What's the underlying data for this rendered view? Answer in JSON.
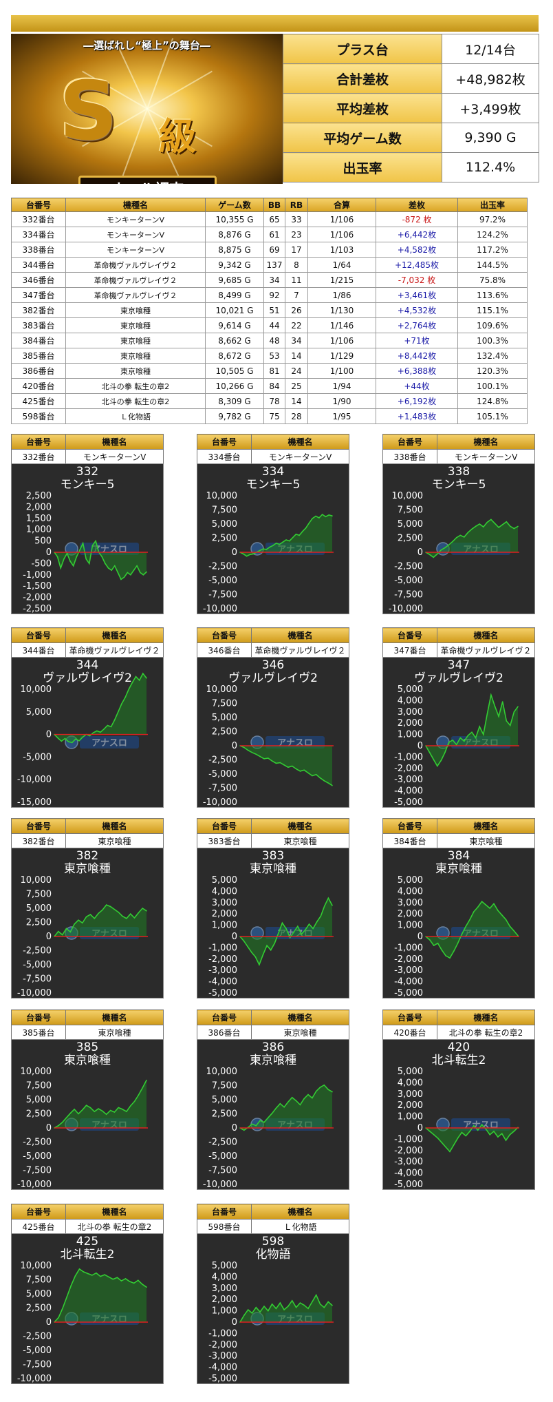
{
  "banner": {
    "subtitle": "―選ばれし“極上”の舞台―",
    "emblem_letter": "S",
    "emblem_grade": "級",
    "plate": "ホール調査"
  },
  "summary": [
    {
      "label": "プラス台",
      "value": "12/14台"
    },
    {
      "label": "合計差枚",
      "value": "+48,982枚"
    },
    {
      "label": "平均差枚",
      "value": "+3,499枚"
    },
    {
      "label": "平均ゲーム数",
      "value": "9,390 G"
    },
    {
      "label": "出玉率",
      "value": "112.4%"
    }
  ],
  "table": {
    "headers": [
      "台番号",
      "機種名",
      "ゲーム数",
      "BB",
      "RB",
      "合算",
      "差枚",
      "出玉率"
    ],
    "rows": [
      [
        "332番台",
        "モンキーターンV",
        "10,355 G",
        "65",
        "33",
        "1/106",
        "-872 枚",
        "97.2%"
      ],
      [
        "334番台",
        "モンキーターンV",
        "8,876 G",
        "61",
        "23",
        "1/106",
        "+6,442枚",
        "124.2%"
      ],
      [
        "338番台",
        "モンキーターンV",
        "8,875 G",
        "69",
        "17",
        "1/103",
        "+4,582枚",
        "117.2%"
      ],
      [
        "344番台",
        "革命機ヴァルヴレイヴ２",
        "9,342 G",
        "137",
        "8",
        "1/64",
        "+12,485枚",
        "144.5%"
      ],
      [
        "346番台",
        "革命機ヴァルヴレイヴ２",
        "9,685 G",
        "34",
        "11",
        "1/215",
        "-7,032 枚",
        "75.8%"
      ],
      [
        "347番台",
        "革命機ヴァルヴレイヴ２",
        "8,499 G",
        "92",
        "7",
        "1/86",
        "+3,461枚",
        "113.6%"
      ],
      [
        "382番台",
        "東京喰種",
        "10,021 G",
        "51",
        "26",
        "1/130",
        "+4,532枚",
        "115.1%"
      ],
      [
        "383番台",
        "東京喰種",
        "9,614 G",
        "44",
        "22",
        "1/146",
        "+2,764枚",
        "109.6%"
      ],
      [
        "384番台",
        "東京喰種",
        "8,662 G",
        "48",
        "34",
        "1/106",
        "+71枚",
        "100.3%"
      ],
      [
        "385番台",
        "東京喰種",
        "8,672 G",
        "53",
        "14",
        "1/129",
        "+8,442枚",
        "132.4%"
      ],
      [
        "386番台",
        "東京喰種",
        "10,505 G",
        "81",
        "24",
        "1/100",
        "+6,388枚",
        "120.3%"
      ],
      [
        "420番台",
        "北斗の拳 転生の章2",
        "10,266 G",
        "84",
        "25",
        "1/94",
        "+44枚",
        "100.1%"
      ],
      [
        "425番台",
        "北斗の拳 転生の章2",
        "8,309 G",
        "78",
        "14",
        "1/90",
        "+6,192枚",
        "124.8%"
      ],
      [
        "598番台",
        "Ｌ化物語",
        "9,782 G",
        "75",
        "28",
        "1/95",
        "+1,483枚",
        "105.1%"
      ]
    ]
  },
  "panel_header": {
    "col1": "台番号",
    "col2": "機種名"
  },
  "watermark": "アナスロ",
  "colors": {
    "gold": "#d9a423",
    "positive": "#1c1ca8",
    "negative": "#c81414",
    "chart_bg": "#2b2b2b",
    "line": "#33cc33",
    "zero_line": "#e02020"
  },
  "chart_data": [
    {
      "type": "area",
      "unit": "332番台",
      "model": "モンキーターンV",
      "title1": "332",
      "title2": "モンキー5",
      "ylim": [
        -2500,
        2500
      ],
      "yticks": [
        "2,500",
        "2,000",
        "1,500",
        "1,000",
        "500",
        "0",
        "-500",
        "-1,000",
        "-1,500",
        "-2,000",
        "-2,500"
      ],
      "values": [
        0,
        -200,
        -700,
        -300,
        -50,
        -400,
        -600,
        -200,
        100,
        400,
        -300,
        -500,
        300,
        500,
        0,
        -200,
        -500,
        -700,
        -800,
        -600,
        -900,
        -1200,
        -1100,
        -900,
        -1000,
        -800,
        -600,
        -900,
        -1000,
        -872
      ]
    },
    {
      "type": "area",
      "unit": "334番台",
      "model": "モンキーターンV",
      "title1": "334",
      "title2": "モンキー5",
      "ylim": [
        -10000,
        10000
      ],
      "yticks": [
        "10,000",
        "7,500",
        "5,000",
        "2,500",
        "0",
        "-2,500",
        "-5,000",
        "-7,500",
        "-10,000"
      ],
      "values": [
        0,
        -300,
        -700,
        -400,
        -300,
        0,
        300,
        600,
        500,
        900,
        1200,
        1600,
        1400,
        1800,
        2200,
        2000,
        2600,
        3200,
        3000,
        3700,
        4300,
        5200,
        6000,
        6400,
        6100,
        6700,
        6300,
        6600,
        6442
      ]
    },
    {
      "type": "area",
      "unit": "338番台",
      "model": "モンキーターンV",
      "title1": "338",
      "title2": "モンキー5",
      "ylim": [
        -10000,
        10000
      ],
      "yticks": [
        "10,000",
        "7,500",
        "5,000",
        "2,500",
        "0",
        "-2,500",
        "-5,000",
        "-7,500",
        "-10,000"
      ],
      "values": [
        0,
        -400,
        -900,
        -300,
        400,
        800,
        1300,
        1900,
        2600,
        3000,
        2700,
        3500,
        4100,
        4600,
        5000,
        4500,
        5300,
        5800,
        5100,
        4400,
        4900,
        5400,
        4600,
        4200,
        4582
      ]
    },
    {
      "type": "area",
      "unit": "344番台",
      "model": "革命機ヴァルヴレイヴ２",
      "title1": "344",
      "title2": "ヴァルヴレイヴ2",
      "ylim": [
        -15000,
        15000
      ],
      "yticks": [
        "10,000",
        "5,000",
        "0",
        "-5,000",
        "-10,000",
        "-15,000"
      ],
      "values": [
        0,
        -800,
        -1500,
        -900,
        -1600,
        -1800,
        -1000,
        -1400,
        -600,
        0,
        -300,
        400,
        800,
        500,
        1200,
        2000,
        1700,
        3200,
        5000,
        6800,
        8200,
        10000,
        11500,
        12800,
        12000,
        13500,
        12485
      ]
    },
    {
      "type": "area",
      "unit": "346番台",
      "model": "革命機ヴァルヴレイヴ２",
      "title1": "346",
      "title2": "ヴァルヴレイヴ2",
      "ylim": [
        -10000,
        10000
      ],
      "yticks": [
        "10,000",
        "7,500",
        "5,000",
        "2,500",
        "0",
        "-2,500",
        "-5,000",
        "-7,500",
        "-10,000"
      ],
      "values": [
        0,
        -300,
        -800,
        -1200,
        -1500,
        -1900,
        -2300,
        -2200,
        -2700,
        -3100,
        -3000,
        -3400,
        -3800,
        -3600,
        -4100,
        -4500,
        -4300,
        -4800,
        -5300,
        -5100,
        -5700,
        -6200,
        -6600,
        -7032
      ]
    },
    {
      "type": "area",
      "unit": "347番台",
      "model": "革命機ヴァルヴレイヴ２",
      "title1": "347",
      "title2": "ヴァルヴレイヴ2",
      "ylim": [
        -5000,
        5000
      ],
      "yticks": [
        "5,000",
        "4,000",
        "3,000",
        "2,000",
        "1,000",
        "0",
        "-1,000",
        "-2,000",
        "-3,000",
        "-4,000",
        "-5,000"
      ],
      "values": [
        0,
        -600,
        -1200,
        -1800,
        -1300,
        -600,
        300,
        500,
        100,
        700,
        400,
        900,
        1200,
        700,
        1700,
        1000,
        2800,
        4500,
        3500,
        2600,
        3900,
        2200,
        1800,
        3000,
        3461
      ]
    },
    {
      "type": "area",
      "unit": "382番台",
      "model": "東京喰種",
      "title1": "382",
      "title2": "東京喰種",
      "ylim": [
        -10000,
        10000
      ],
      "yticks": [
        "10,000",
        "7,500",
        "5,000",
        "2,500",
        "0",
        "-2,500",
        "-5,000",
        "-7,500",
        "-10,000"
      ],
      "values": [
        0,
        900,
        300,
        1400,
        800,
        2200,
        2900,
        2400,
        3500,
        3900,
        3200,
        4100,
        4700,
        5600,
        5300,
        4800,
        4300,
        3600,
        3200,
        4000,
        3300,
        4200,
        5000,
        4532
      ]
    },
    {
      "type": "area",
      "unit": "383番台",
      "model": "東京喰種",
      "title1": "383",
      "title2": "東京喰種",
      "ylim": [
        -5000,
        5000
      ],
      "yticks": [
        "5,000",
        "4,000",
        "3,000",
        "2,000",
        "1,000",
        "0",
        "-1,000",
        "-2,000",
        "-3,000",
        "-4,000",
        "-5,000"
      ],
      "values": [
        0,
        -400,
        -900,
        -1400,
        -1800,
        -2500,
        -1600,
        -800,
        -1200,
        -600,
        300,
        1200,
        700,
        -100,
        400,
        900,
        200,
        600,
        1100,
        700,
        1300,
        1800,
        2700,
        3400,
        2764
      ]
    },
    {
      "type": "area",
      "unit": "384番台",
      "model": "東京喰種",
      "title1": "384",
      "title2": "東京喰種",
      "ylim": [
        -5000,
        5000
      ],
      "yticks": [
        "5,000",
        "4,000",
        "3,000",
        "2,000",
        "1,000",
        "0",
        "-1,000",
        "-2,000",
        "-3,000",
        "-4,000",
        "-5,000"
      ],
      "values": [
        0,
        -300,
        -800,
        -600,
        -1200,
        -1700,
        -1900,
        -1300,
        -600,
        200,
        900,
        1500,
        2200,
        2600,
        3100,
        2800,
        2500,
        2900,
        2300,
        1900,
        1500,
        900,
        500,
        71
      ]
    },
    {
      "type": "area",
      "unit": "385番台",
      "model": "東京喰種",
      "title1": "385",
      "title2": "東京喰種",
      "ylim": [
        -10000,
        10000
      ],
      "yticks": [
        "10,000",
        "7,500",
        "5,000",
        "2,500",
        "0",
        "-2,500",
        "-5,000",
        "-7,500",
        "-10,000"
      ],
      "values": [
        0,
        400,
        1000,
        1800,
        2600,
        3300,
        2500,
        3200,
        4000,
        3600,
        2900,
        3400,
        3000,
        2400,
        3100,
        2800,
        3600,
        3300,
        2900,
        3900,
        4700,
        5800,
        7100,
        8442
      ]
    },
    {
      "type": "area",
      "unit": "386番台",
      "model": "東京喰種",
      "title1": "386",
      "title2": "東京喰種",
      "ylim": [
        -10000,
        10000
      ],
      "yticks": [
        "10,000",
        "7,500",
        "5,000",
        "2,500",
        "0",
        "-2,500",
        "-5,000",
        "-7,500",
        "-10,000"
      ],
      "values": [
        0,
        -400,
        100,
        700,
        400,
        1300,
        1000,
        1800,
        2600,
        3500,
        4300,
        3700,
        4600,
        5400,
        4800,
        4100,
        5200,
        5900,
        5300,
        6500,
        7200,
        7600,
        6800,
        6388
      ]
    },
    {
      "type": "area",
      "unit": "420番台",
      "model": "北斗の拳 転生の章2",
      "title1": "420",
      "title2": "北斗転生2",
      "ylim": [
        -5000,
        5000
      ],
      "yticks": [
        "5,000",
        "4,000",
        "3,000",
        "2,000",
        "1,000",
        "0",
        "-1,000",
        "-2,000",
        "-3,000",
        "-4,000",
        "-5,000"
      ],
      "values": [
        0,
        -300,
        -600,
        -900,
        -1300,
        -1700,
        -2100,
        -1500,
        -900,
        -400,
        -700,
        -300,
        200,
        -200,
        300,
        -100,
        -600,
        -300,
        -800,
        -500,
        -1100,
        -600,
        -300,
        44
      ]
    },
    {
      "type": "area",
      "unit": "425番台",
      "model": "北斗の拳 転生の章2",
      "title1": "425",
      "title2": "北斗転生2",
      "ylim": [
        -10000,
        10000
      ],
      "yticks": [
        "10,000",
        "7,500",
        "5,000",
        "2,500",
        "0",
        "-2,500",
        "-5,000",
        "-7,500",
        "-10,000"
      ],
      "values": [
        0,
        800,
        2500,
        4500,
        6500,
        8200,
        9400,
        8900,
        8600,
        8300,
        8700,
        8100,
        8400,
        8000,
        7600,
        7900,
        7300,
        7700,
        7200,
        6900,
        7400,
        6700,
        6192
      ]
    },
    {
      "type": "area",
      "unit": "598番台",
      "model": "Ｌ化物語",
      "title1": "598",
      "title2": "化物語",
      "ylim": [
        -5000,
        5000
      ],
      "yticks": [
        "5,000",
        "4,000",
        "3,000",
        "2,000",
        "1,000",
        "0",
        "-1,000",
        "-2,000",
        "-3,000",
        "-4,000",
        "-5,000"
      ],
      "values": [
        0,
        600,
        1100,
        800,
        1300,
        900,
        1400,
        1000,
        1600,
        1200,
        1700,
        1100,
        1400,
        1900,
        1300,
        1700,
        1500,
        1200,
        1800,
        2400,
        1600,
        1300,
        1800,
        1483
      ]
    }
  ]
}
